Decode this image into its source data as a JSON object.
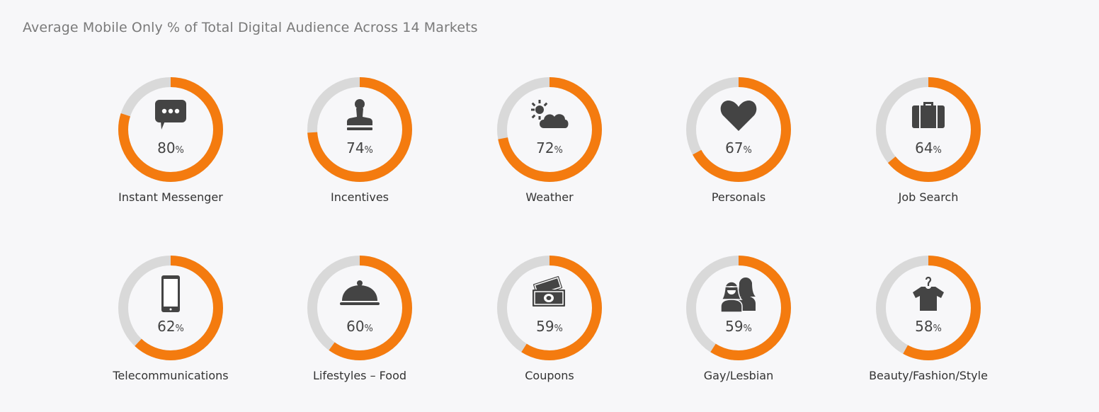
{
  "title": "Average Mobile Only % of Total Digital Audience Across 14 Markets",
  "colors": {
    "accent": "#f47b0f",
    "track": "#d9d9d9",
    "icon": "#444444"
  },
  "chart_data": {
    "type": "donut",
    "title": "Average Mobile Only % of Total Digital Audience Across 14 Markets",
    "categories": [
      "Instant Messenger",
      "Incentives",
      "Weather",
      "Personals",
      "Job Search",
      "Telecommunications",
      "Lifestyles – Food",
      "Coupons",
      "Gay/Lesbian",
      "Beauty/Fashion/Style"
    ],
    "values": [
      80,
      74,
      72,
      67,
      64,
      62,
      60,
      59,
      59,
      58
    ],
    "unit": "%",
    "icons": [
      "chat-bubble-icon",
      "stamp-icon",
      "sun-cloud-icon",
      "heart-icon",
      "briefcase-icon",
      "smartphone-icon",
      "food-cloche-icon",
      "money-bills-icon",
      "couple-icon",
      "shirt-hanger-icon"
    ]
  }
}
